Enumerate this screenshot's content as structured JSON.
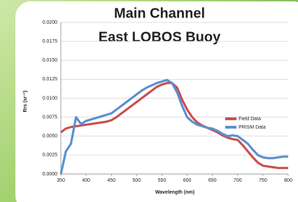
{
  "chart_data": {
    "type": "line",
    "title": [
      "Main Channel",
      "East LOBOS Buoy"
    ],
    "x_label": "Wavelength (nm)",
    "y_label": "Rrs (sr⁻¹)",
    "x": [
      350,
      360,
      370,
      380,
      390,
      400,
      410,
      420,
      430,
      440,
      450,
      460,
      470,
      480,
      490,
      500,
      510,
      520,
      530,
      540,
      550,
      560,
      570,
      580,
      590,
      600,
      610,
      620,
      630,
      640,
      650,
      660,
      670,
      680,
      690,
      700,
      710,
      720,
      730,
      740,
      750,
      760,
      770,
      780,
      790,
      800
    ],
    "series": [
      {
        "name": "Field Data",
        "color": "#c8504e",
        "values": [
          0.0055,
          0.006,
          0.0062,
          0.0063,
          0.0064,
          0.0065,
          0.0066,
          0.0067,
          0.0068,
          0.0069,
          0.0071,
          0.0075,
          0.008,
          0.0085,
          0.009,
          0.0095,
          0.01,
          0.0105,
          0.011,
          0.0115,
          0.0118,
          0.012,
          0.012,
          0.0114,
          0.0098,
          0.0085,
          0.0075,
          0.0068,
          0.0064,
          0.0061,
          0.0058,
          0.0055,
          0.0051,
          0.0048,
          0.0046,
          0.0045,
          0.0038,
          0.003,
          0.0022,
          0.0015,
          0.0011,
          0.001,
          0.0009,
          0.0008,
          0.0008,
          0.0008
        ]
      },
      {
        "name": "PRISM Data",
        "color": "#5b8fd0",
        "values": [
          0,
          0.003,
          0.004,
          0.0075,
          0.0066,
          0.007,
          0.0072,
          0.0074,
          0.0076,
          0.0078,
          0.008,
          0.0085,
          0.009,
          0.0095,
          0.01,
          0.0105,
          0.011,
          0.0114,
          0.0117,
          0.012,
          0.0122,
          0.0124,
          0.012,
          0.0108,
          0.009,
          0.0075,
          0.0069,
          0.0065,
          0.0063,
          0.0061,
          0.006,
          0.0057,
          0.0053,
          0.005,
          0.0051,
          0.005,
          0.0045,
          0.004,
          0.0032,
          0.0025,
          0.0022,
          0.0021,
          0.0021,
          0.0022,
          0.0023,
          0.0023
        ]
      }
    ],
    "xlim": [
      350,
      800
    ],
    "xticks": [
      350,
      400,
      450,
      500,
      550,
      600,
      650,
      700,
      750,
      800
    ],
    "ylim": [
      0,
      0.02
    ],
    "yticks": [
      {
        "value": 0,
        "label": "0.0000"
      },
      {
        "value": 0.0025,
        "label": "0.0025"
      },
      {
        "value": 0.005,
        "label": "0.0050"
      },
      {
        "value": 0.0075,
        "label": "0.0075"
      },
      {
        "value": 0.01,
        "label": "0.0100"
      },
      {
        "value": 0.0125,
        "label": "0.0125"
      },
      {
        "value": 0.015,
        "label": "0.0150"
      },
      {
        "value": 0.0175,
        "label": "0.0175"
      },
      {
        "value": 0.02,
        "label": "0.0200"
      }
    ],
    "grid": true,
    "legend": "right"
  }
}
